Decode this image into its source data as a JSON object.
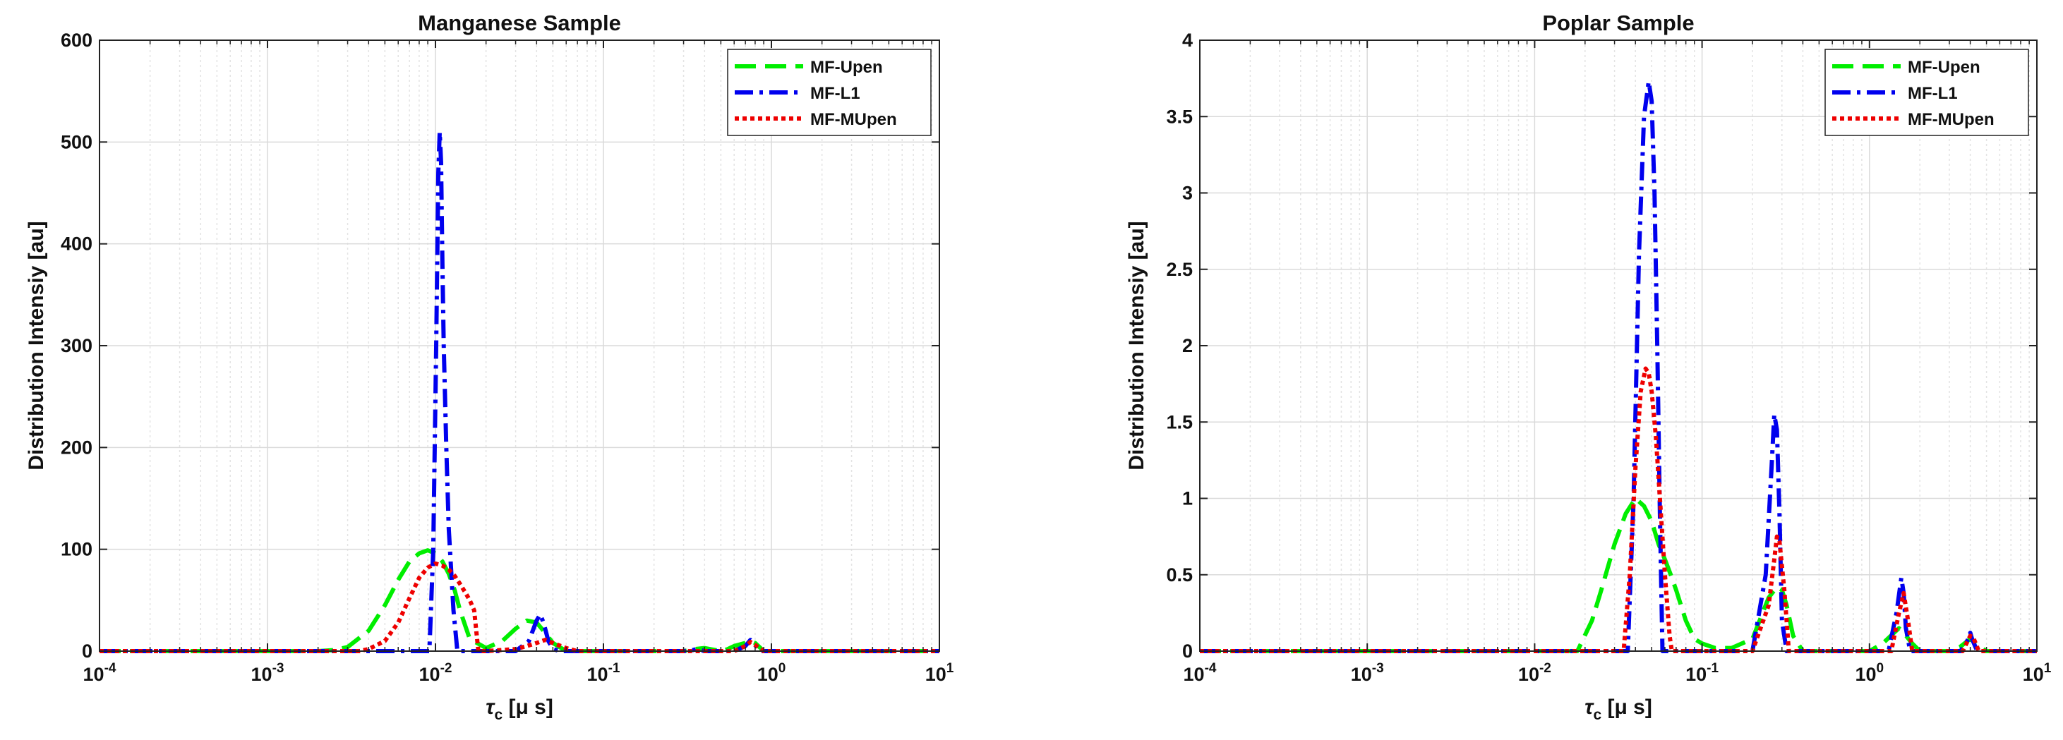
{
  "chart_data": [
    {
      "type": "line",
      "title": "Manganese Sample",
      "xlabel": "τc [μ s]",
      "ylabel": "Distribution Intensiy [au]",
      "xscale": "log",
      "xlim": [
        0.0001,
        10
      ],
      "ylim": [
        0,
        600
      ],
      "xticks": [
        "10^-4",
        "10^-3",
        "10^-2",
        "10^-1",
        "10^0",
        "10^1"
      ],
      "yticks": [
        "0",
        "100",
        "200",
        "300",
        "400",
        "500",
        "600"
      ],
      "grid": true,
      "legend_position": "top-right",
      "series": [
        {
          "name": "MF-Upen",
          "color": "#00ee00",
          "style": "dashed",
          "x": [
            0.0001,
            0.002,
            0.0025,
            0.003,
            0.004,
            0.005,
            0.006,
            0.007,
            0.008,
            0.009,
            0.01,
            0.011,
            0.012,
            0.013,
            0.014,
            0.016,
            0.02,
            0.025,
            0.03,
            0.035,
            0.04,
            0.045,
            0.05,
            0.06,
            0.3,
            0.35,
            0.4,
            0.5,
            0.55,
            0.6,
            0.7,
            0.75,
            0.8,
            0.9,
            10
          ],
          "y": [
            0,
            0,
            1,
            4,
            20,
            45,
            70,
            88,
            96,
            99,
            96,
            88,
            76,
            60,
            40,
            12,
            3,
            10,
            22,
            30,
            28,
            18,
            8,
            0,
            0,
            2,
            3,
            0,
            2,
            5,
            8,
            10,
            8,
            0,
            0
          ]
        },
        {
          "name": "MF-L1",
          "color": "#0000ee",
          "style": "dashdot",
          "x": [
            0.0001,
            0.0092,
            0.0097,
            0.0101,
            0.0104,
            0.0106,
            0.0108,
            0.011,
            0.0112,
            0.0116,
            0.012,
            0.0128,
            0.0135,
            0.02,
            0.03,
            0.036,
            0.04,
            0.042,
            0.044,
            0.047,
            0.05,
            0.055,
            0.3,
            0.34,
            0.36,
            0.4,
            0.6,
            0.7,
            0.75,
            0.8,
            0.85,
            10
          ],
          "y": [
            0,
            0,
            100,
            300,
            470,
            510,
            480,
            380,
            300,
            200,
            120,
            40,
            0,
            0,
            0,
            10,
            30,
            36,
            28,
            10,
            2,
            0,
            0,
            1,
            2,
            0,
            0,
            5,
            11,
            6,
            0,
            0
          ]
        },
        {
          "name": "MF-MUpen",
          "color": "#ee0000",
          "style": "dotted",
          "x": [
            0.0001,
            0.0035,
            0.004,
            0.005,
            0.006,
            0.007,
            0.008,
            0.009,
            0.01,
            0.011,
            0.012,
            0.013,
            0.014,
            0.015,
            0.016,
            0.017,
            0.018,
            0.02,
            0.03,
            0.035,
            0.04,
            0.045,
            0.05,
            0.06,
            0.07,
            0.6,
            0.7,
            0.75,
            0.8,
            0.9,
            10
          ],
          "y": [
            0,
            0,
            2,
            10,
            28,
            52,
            72,
            82,
            86,
            84,
            80,
            74,
            66,
            58,
            50,
            40,
            0,
            0,
            2,
            5,
            8,
            11,
            8,
            3,
            0,
            0,
            5,
            9,
            6,
            0,
            0
          ]
        }
      ]
    },
    {
      "type": "line",
      "title": "Poplar Sample",
      "xlabel": "τc [μ s]",
      "ylabel": "Distribution Intensiy [au]",
      "xscale": "log",
      "xlim": [
        0.0001,
        10
      ],
      "ylim": [
        0,
        4
      ],
      "xticks": [
        "10^-4",
        "10^-3",
        "10^-2",
        "10^-1",
        "10^0",
        "10^1"
      ],
      "yticks": [
        "0",
        "0.5",
        "1",
        "1.5",
        "2",
        "2.5",
        "3",
        "3.5",
        "4"
      ],
      "grid": true,
      "legend_position": "top-right",
      "series": [
        {
          "name": "MF-Upen",
          "color": "#00ee00",
          "style": "dashed",
          "x": [
            0.0001,
            0.018,
            0.022,
            0.025,
            0.03,
            0.035,
            0.04,
            0.045,
            0.05,
            0.055,
            0.06,
            0.065,
            0.07,
            0.08,
            0.09,
            0.1,
            0.12,
            0.15,
            0.2,
            0.23,
            0.25,
            0.28,
            0.3,
            0.32,
            0.35,
            0.4,
            1.0,
            1.2,
            1.4,
            1.5,
            1.6,
            1.8,
            2.0,
            2.2,
            3.0,
            3.5,
            4.0,
            4.5,
            5.0,
            10
          ],
          "y": [
            0,
            0,
            0.2,
            0.4,
            0.7,
            0.9,
            1.0,
            0.95,
            0.85,
            0.7,
            0.6,
            0.5,
            0.4,
            0.2,
            0.08,
            0.05,
            0.02,
            0.02,
            0.08,
            0.25,
            0.35,
            0.42,
            0.4,
            0.3,
            0.1,
            0,
            0,
            0.05,
            0.12,
            0.15,
            0.12,
            0.05,
            0,
            0,
            0,
            0.03,
            0.08,
            0.03,
            0,
            0
          ]
        },
        {
          "name": "MF-L1",
          "color": "#0000ee",
          "style": "dashdot",
          "x": [
            0.0001,
            0.036,
            0.039,
            0.042,
            0.045,
            0.048,
            0.05,
            0.052,
            0.054,
            0.056,
            0.058,
            0.2,
            0.24,
            0.26,
            0.27,
            0.28,
            0.29,
            0.3,
            0.32,
            1.3,
            1.45,
            1.55,
            1.6,
            1.65,
            1.75,
            3.5,
            3.9,
            4.0,
            4.1,
            4.4,
            10
          ],
          "y": [
            0,
            0,
            1.0,
            2.6,
            3.5,
            3.73,
            3.6,
            3.0,
            2.0,
            0.9,
            0,
            0,
            0.5,
            1.2,
            1.55,
            1.45,
            0.9,
            0.2,
            0,
            0,
            0.25,
            0.48,
            0.38,
            0.15,
            0,
            0,
            0.08,
            0.12,
            0.08,
            0,
            0
          ]
        },
        {
          "name": "MF-MUpen",
          "color": "#ee0000",
          "style": "dotted",
          "x": [
            0.0001,
            0.034,
            0.037,
            0.04,
            0.043,
            0.046,
            0.048,
            0.05,
            0.053,
            0.056,
            0.06,
            0.064,
            0.066,
            0.2,
            0.25,
            0.27,
            0.28,
            0.29,
            0.31,
            0.33,
            1.35,
            1.5,
            1.6,
            1.7,
            1.8,
            3.6,
            4.0,
            4.2,
            4.5,
            10
          ],
          "y": [
            0,
            0,
            0.5,
            1.2,
            1.7,
            1.85,
            1.82,
            1.7,
            1.4,
            1.0,
            0.5,
            0.1,
            0,
            0,
            0.3,
            0.6,
            0.75,
            0.72,
            0.4,
            0,
            0,
            0.25,
            0.38,
            0.2,
            0,
            0,
            0.1,
            0.08,
            0,
            0
          ]
        }
      ]
    }
  ]
}
